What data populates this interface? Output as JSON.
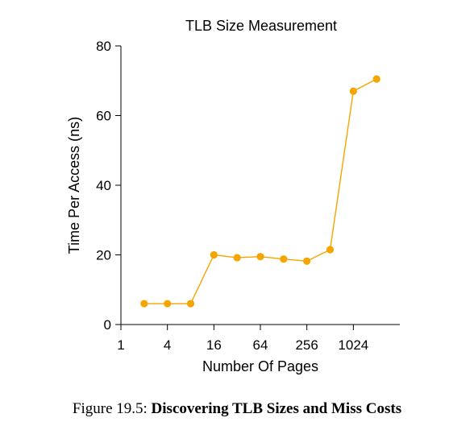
{
  "chart_data": {
    "type": "line",
    "title": "TLB Size Measurement",
    "xlabel": "Number Of Pages",
    "ylabel": "Time Per Access (ns)",
    "x_scale": "log2",
    "xlim": [
      1,
      4096
    ],
    "ylim": [
      0,
      80
    ],
    "x_ticks": [
      1,
      4,
      16,
      64,
      256,
      1024
    ],
    "x_tick_labels": [
      "1",
      "4",
      "16",
      "64",
      "256",
      "1024"
    ],
    "y_ticks": [
      0,
      20,
      40,
      60,
      80
    ],
    "y_tick_labels": [
      "0",
      "20",
      "40",
      "60",
      "80"
    ],
    "grid": false,
    "color": "#f5a400",
    "series": [
      {
        "x": [
          2,
          4,
          8,
          16,
          32,
          64,
          128,
          256,
          512,
          1024,
          2048
        ],
        "y": [
          6,
          6,
          6,
          20,
          19.2,
          19.5,
          18.8,
          18.2,
          21.5,
          67,
          70.5
        ]
      }
    ]
  },
  "caption": {
    "prefix": "Figure 19.5: ",
    "bold": "Discovering TLB Sizes and Miss Costs"
  }
}
